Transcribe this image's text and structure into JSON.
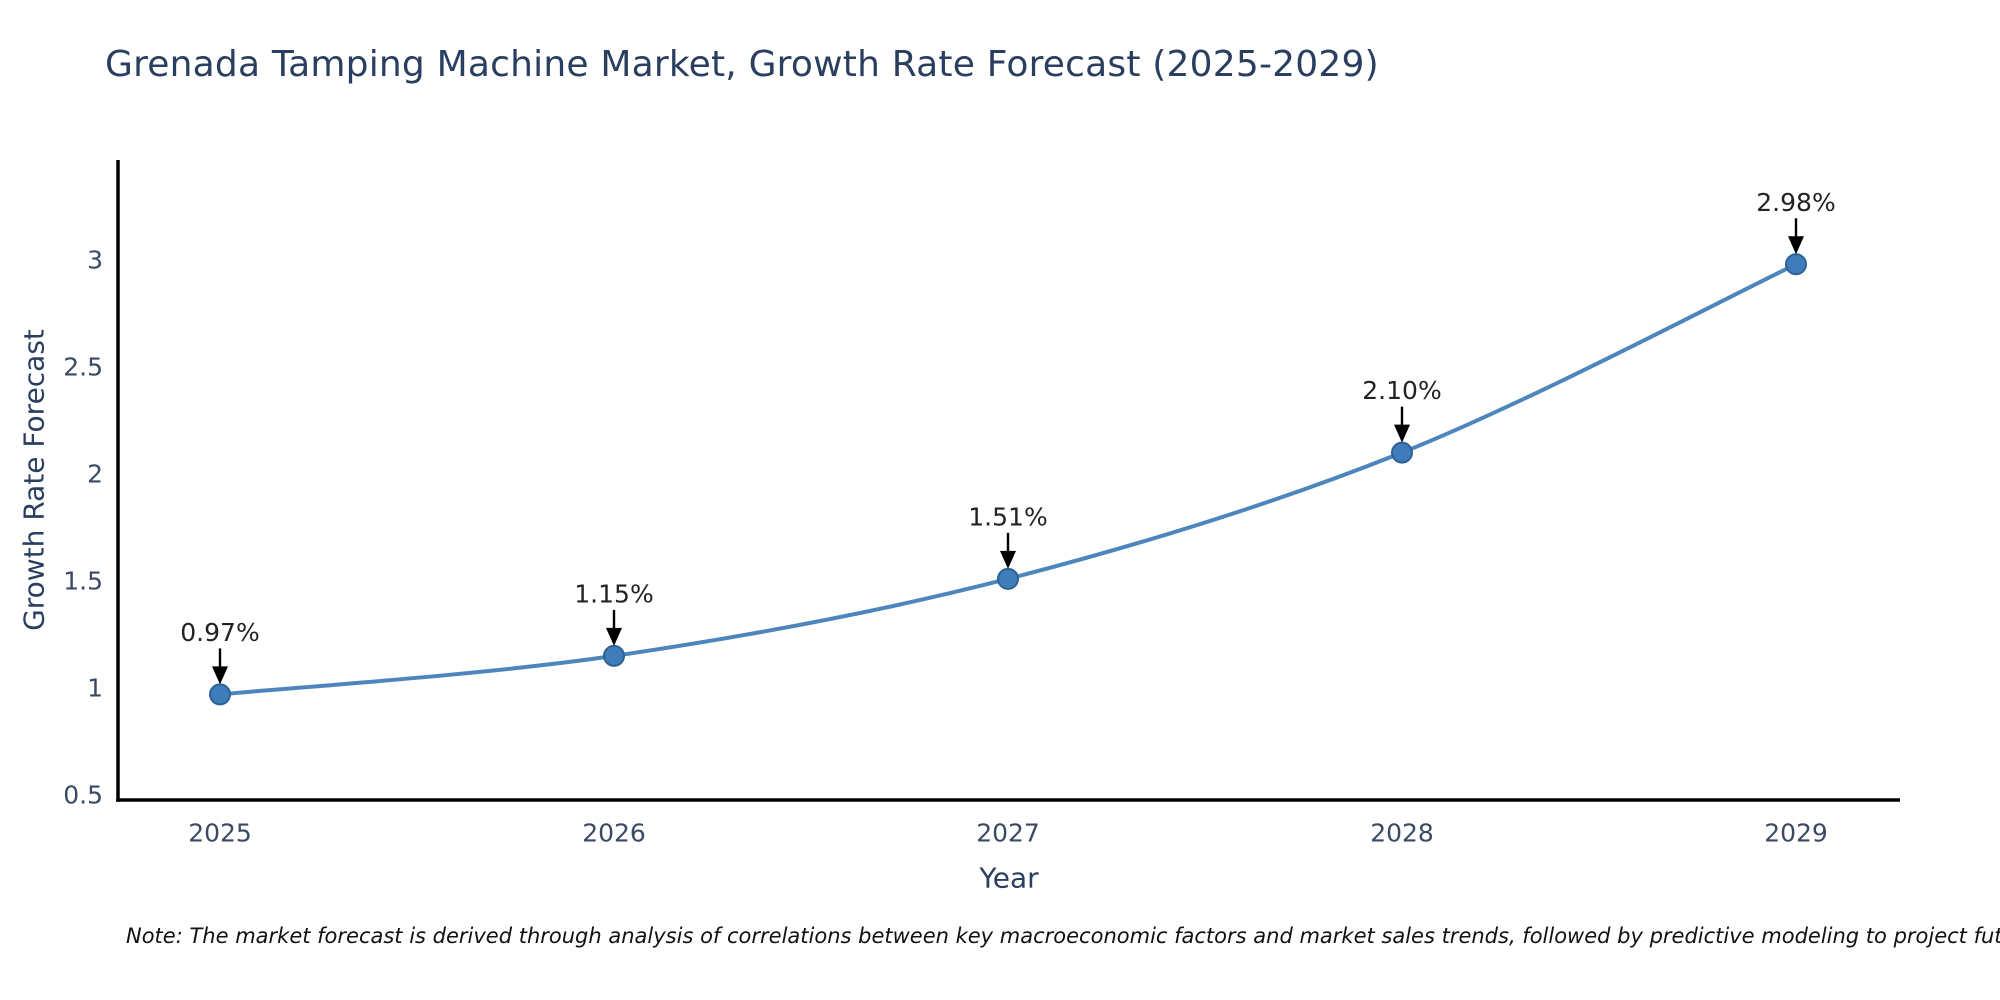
{
  "chart_data": {
    "type": "line",
    "title": "Grenada Tamping Machine Market, Growth Rate Forecast (2025-2029)",
    "xlabel": "Year",
    "ylabel": "Growth Rate Forecast",
    "categories": [
      "2025",
      "2026",
      "2027",
      "2028",
      "2029"
    ],
    "values": [
      0.97,
      1.15,
      1.51,
      2.1,
      2.98
    ],
    "point_labels": [
      "0.97%",
      "1.15%",
      "1.51%",
      "2.10%",
      "2.98%"
    ],
    "yticks": [
      "0.5",
      "1",
      "1.5",
      "2",
      "2.5",
      "3"
    ],
    "ytick_values": [
      0.5,
      1,
      1.5,
      2,
      2.5,
      3
    ],
    "ylim": [
      0.48,
      3.47
    ],
    "grid": false,
    "legend_position": "none",
    "line_shape": "spline",
    "colors": {
      "line": "#4d86bd",
      "marker_fill": "#3e7cba",
      "marker_edge": "#2e6195",
      "axis": "#000000",
      "axis_text": "#3b4a63",
      "heading_text": "#2a3f5f",
      "annotation_text": "#222222",
      "arrow": "#000000",
      "background": "#ffffff"
    },
    "note": "Note: The market forecast is derived through analysis of correlations between key macroeconomic factors and market sales trends, followed by predictive modeling to project future sales"
  }
}
